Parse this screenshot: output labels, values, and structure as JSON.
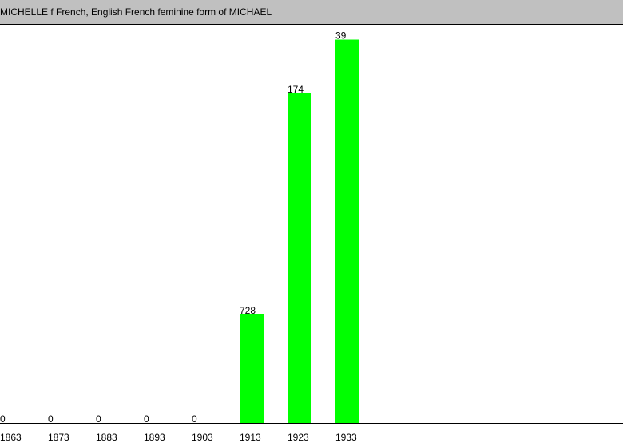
{
  "chart_data": {
    "type": "bar",
    "title": "MICHELLE f French, English French feminine form of MICHAEL",
    "categories": [
      "1863",
      "1873",
      "1883",
      "1893",
      "1903",
      "1913",
      "1923",
      "1933"
    ],
    "values": [
      0,
      0,
      0,
      0,
      0,
      728,
      174,
      39
    ],
    "color": "#00ff00",
    "ylim": [
      1000,
      0
    ]
  }
}
